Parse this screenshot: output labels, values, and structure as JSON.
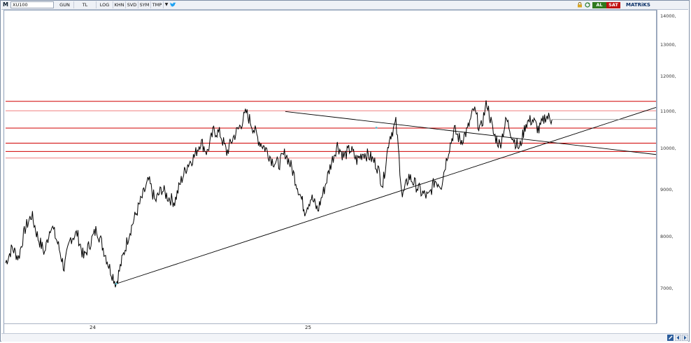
{
  "toolbar": {
    "logo": "M",
    "symbol": "XU100",
    "buttons": [
      "GUN",
      "TL",
      "LOG",
      "KHN",
      "SVD",
      "SYM",
      "TMP"
    ],
    "al_label": "AL",
    "sat_label": "SAT",
    "brand": "MATRiKS"
  },
  "colors": {
    "price": "#000000",
    "support_resistance": "#d00000",
    "resistance_light": "#f08080",
    "trendline": "#000000",
    "al": "#2f7a1f",
    "sat": "#c01010"
  },
  "chart_data": {
    "type": "line",
    "title": "",
    "xlabel": "",
    "ylabel": "",
    "scale": "log",
    "ylim": [
      6500,
      14600
    ],
    "y_ticks": [
      "14000,",
      "13000,",
      "12000,",
      "11000,",
      "10000,",
      "9000,",
      "8000,",
      "7000,"
    ],
    "x_ticks": [
      "24",
      "25"
    ],
    "grid": false,
    "series": [
      {
        "values": [
          7600,
          7900,
          7700,
          8300,
          8600,
          8100,
          7800,
          8400,
          8000,
          7500,
          8100,
          8200,
          7700,
          8000,
          8300,
          7900,
          7500,
          7200,
          7700,
          8200,
          8600,
          9000,
          9400,
          8900,
          9200,
          9000,
          8900,
          9400,
          9800,
          10000,
          10400,
          10100,
          10700,
          10600,
          10100,
          10500,
          10800,
          11200,
          10800,
          10400,
          10200,
          9900,
          9800,
          10100,
          9700,
          9200,
          8700,
          9000,
          8700,
          9200,
          9800,
          10300,
          10000,
          10200,
          9900,
          10100,
          10000,
          9800,
          9300,
          10500,
          10900,
          9000,
          9500,
          9300,
          9100,
          9000,
          9400,
          9300,
          10100,
          10700,
          10400,
          10700,
          11300,
          10700,
          11500,
          10600,
          10300,
          11000,
          10500,
          10200,
          10900,
          11000,
          10700,
          11100,
          11000
        ]
      }
    ],
    "horizontal_levels": [
      {
        "value": 11530,
        "color": "#d00000"
      },
      {
        "value": 11250,
        "color": "#f08080"
      },
      {
        "value": 10760,
        "color": "#d00000"
      },
      {
        "value": 10350,
        "color": "#d00000"
      },
      {
        "value": 10130,
        "color": "#d00000"
      },
      {
        "value": 9960,
        "color": "#f08080"
      }
    ],
    "trendlines": [
      {
        "name_hidden": true,
        "start": {
          "index": 17,
          "value": 7200
        },
        "end": {
          "index": 100,
          "value": 11350
        }
      },
      {
        "name_hidden": true,
        "start": {
          "index": 43,
          "value": 11230
        },
        "end": {
          "index": 100,
          "value": 10050
        }
      }
    ]
  }
}
